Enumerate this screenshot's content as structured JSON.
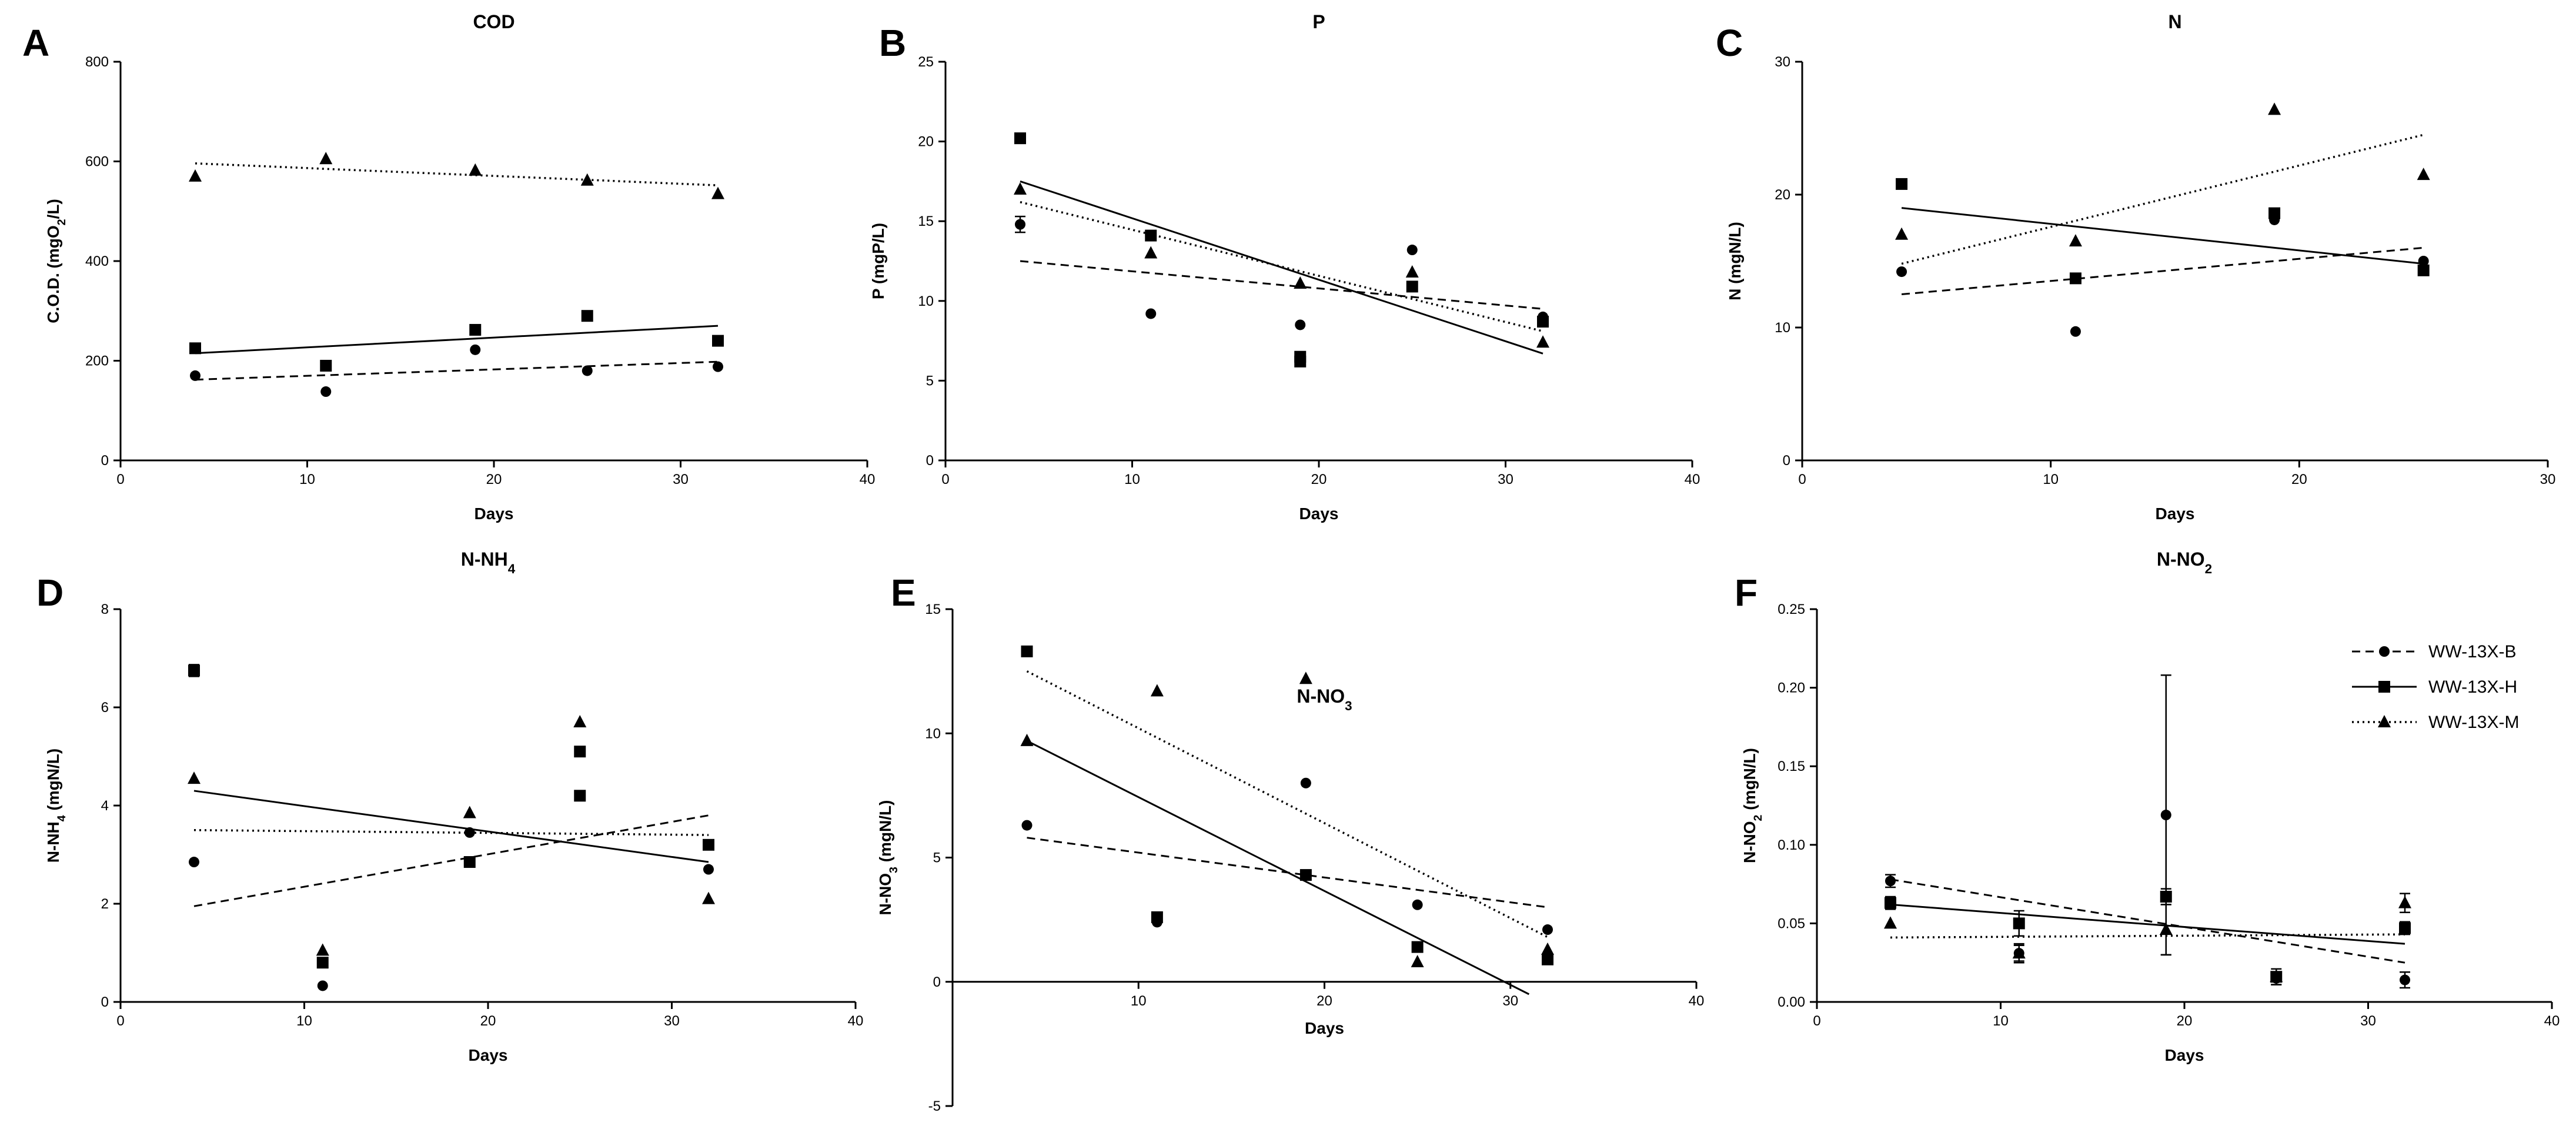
{
  "legend": {
    "entries": [
      {
        "label": "WW-13X-B",
        "marker": "circle",
        "line": "dashed"
      },
      {
        "label": "WW-13X-H",
        "marker": "square",
        "line": "solid"
      },
      {
        "label": "WW-13X-M",
        "marker": "triangle",
        "line": "dotted"
      }
    ]
  },
  "chart_data": [
    {
      "panel": "A",
      "type": "scatter",
      "title": "COD",
      "xlabel": "Days",
      "ylabel": "C.O.D. (mgO2/L)",
      "ylabel_parts": [
        {
          "t": "C.O.D. (mgO"
        },
        {
          "t": "2",
          "sub": true
        },
        {
          "t": "/L)"
        }
      ],
      "xlim": [
        0,
        40
      ],
      "ylim": [
        0,
        800
      ],
      "xticks": [
        0,
        10,
        20,
        30,
        40
      ],
      "yticks": [
        0,
        200,
        400,
        600,
        800
      ],
      "grid": false,
      "series": [
        {
          "name": "WW-13X-B",
          "marker": "circle",
          "line": "dashed",
          "x": [
            4,
            11,
            19,
            25,
            32
          ],
          "y": [
            170,
            138,
            222,
            180,
            188
          ],
          "err": [
            0,
            0,
            0,
            0,
            0
          ],
          "trend": [
            [
              4,
              162
            ],
            [
              32,
              198
            ]
          ]
        },
        {
          "name": "WW-13X-H",
          "marker": "square",
          "line": "solid",
          "x": [
            4,
            11,
            19,
            25,
            32
          ],
          "y": [
            225,
            190,
            262,
            290,
            240
          ],
          "err": [
            0,
            0,
            0,
            0,
            0
          ],
          "trend": [
            [
              4,
              215
            ],
            [
              32,
              270
            ]
          ]
        },
        {
          "name": "WW-13X-M",
          "marker": "triangle",
          "line": "dotted",
          "x": [
            4,
            11,
            19,
            25,
            32
          ],
          "y": [
            570,
            605,
            582,
            562,
            535
          ],
          "err": [
            0,
            0,
            0,
            0,
            0
          ],
          "trend": [
            [
              4,
              596
            ],
            [
              32,
              552
            ]
          ]
        }
      ]
    },
    {
      "panel": "B",
      "type": "scatter",
      "title": "P",
      "xlabel": "Days",
      "ylabel": "P (mgP/L)",
      "ylabel_parts": [
        {
          "t": "P (mgP/L)"
        }
      ],
      "xlim": [
        0,
        40
      ],
      "ylim": [
        0,
        25
      ],
      "xticks": [
        0,
        10,
        20,
        30,
        40
      ],
      "yticks": [
        0,
        5,
        10,
        15,
        20,
        25
      ],
      "grid": false,
      "series": [
        {
          "name": "WW-13X-B",
          "marker": "circle",
          "line": "dashed",
          "x": [
            4,
            11,
            19,
            25,
            32
          ],
          "y": [
            14.8,
            9.2,
            8.5,
            13.2,
            9.0
          ],
          "err": [
            0.5,
            0,
            0,
            0,
            0
          ],
          "trend": [
            [
              4,
              12.5
            ],
            [
              32,
              9.5
            ]
          ]
        },
        {
          "name": "WW-13X-H",
          "marker": "square",
          "line": "solid",
          "x": [
            4,
            11,
            19,
            19,
            25,
            32
          ],
          "y": [
            20.2,
            14.1,
            6.5,
            6.2,
            10.9,
            8.7
          ],
          "err": [
            0,
            0,
            0,
            0,
            0,
            0
          ],
          "trend": [
            [
              4,
              17.5
            ],
            [
              32,
              6.7
            ]
          ]
        },
        {
          "name": "WW-13X-M",
          "marker": "triangle",
          "line": "dotted",
          "x": [
            4,
            11,
            19,
            25,
            32
          ],
          "y": [
            17.0,
            13.0,
            11.1,
            11.8,
            7.4
          ],
          "err": [
            0,
            0,
            0,
            0,
            0
          ],
          "trend": [
            [
              4,
              16.2
            ],
            [
              32,
              8.1
            ]
          ]
        }
      ]
    },
    {
      "panel": "C",
      "type": "scatter",
      "title": "N",
      "xlabel": "Days",
      "ylabel": "N (mgN/L)",
      "ylabel_parts": [
        {
          "t": "N (mgN/L)"
        }
      ],
      "xlim": [
        0,
        30
      ],
      "ylim": [
        0,
        30
      ],
      "xticks": [
        0,
        10,
        20,
        30
      ],
      "yticks": [
        0,
        10,
        20,
        30
      ],
      "grid": false,
      "series": [
        {
          "name": "WW-13X-B",
          "marker": "circle",
          "line": "dashed",
          "x": [
            4,
            11,
            19,
            25
          ],
          "y": [
            14.2,
            9.7,
            18.1,
            15.0
          ],
          "err": [
            0,
            0,
            0,
            0
          ],
          "trend": [
            [
              4,
              12.5
            ],
            [
              25,
              16.0
            ]
          ]
        },
        {
          "name": "WW-13X-H",
          "marker": "square",
          "line": "solid",
          "x": [
            4,
            11,
            19,
            25
          ],
          "y": [
            20.8,
            13.7,
            18.6,
            14.3
          ],
          "err": [
            0,
            0,
            0,
            0
          ],
          "trend": [
            [
              4,
              19.0
            ],
            [
              25,
              14.8
            ]
          ]
        },
        {
          "name": "WW-13X-M",
          "marker": "triangle",
          "line": "dotted",
          "x": [
            4,
            11,
            19,
            25
          ],
          "y": [
            17.0,
            16.5,
            26.4,
            21.5
          ],
          "err": [
            0,
            0,
            0,
            0
          ],
          "trend": [
            [
              4,
              14.8
            ],
            [
              25,
              24.5
            ]
          ]
        }
      ]
    },
    {
      "panel": "D",
      "type": "scatter",
      "title": "N-NH4",
      "title_parts": [
        {
          "t": "N-NH"
        },
        {
          "t": "4",
          "sub": true
        }
      ],
      "xlabel": "Days",
      "ylabel": "N-NH4 (mgN/L)",
      "ylabel_parts": [
        {
          "t": "N-NH"
        },
        {
          "t": "4",
          "sub": true
        },
        {
          "t": " (mgN/L)"
        }
      ],
      "xlim": [
        0,
        40
      ],
      "ylim": [
        0,
        8
      ],
      "xticks": [
        0,
        10,
        20,
        30,
        40
      ],
      "yticks": [
        0,
        2,
        4,
        6,
        8
      ],
      "grid": false,
      "series": [
        {
          "name": "WW-13X-B",
          "marker": "circle",
          "line": "dashed",
          "x": [
            4,
            11,
            19,
            32
          ],
          "y": [
            2.85,
            0.33,
            3.45,
            2.7
          ],
          "err": [
            0,
            0,
            0,
            0
          ],
          "trend": [
            [
              4,
              1.95
            ],
            [
              32,
              3.8
            ]
          ]
        },
        {
          "name": "WW-13X-H",
          "marker": "square",
          "line": "solid",
          "x": [
            4,
            11,
            19,
            25,
            25,
            32
          ],
          "y": [
            6.75,
            0.8,
            2.85,
            5.1,
            4.2,
            3.2
          ],
          "err": [
            0.12,
            0,
            0,
            0,
            0,
            0
          ],
          "trend": [
            [
              4,
              4.3
            ],
            [
              32,
              2.85
            ]
          ]
        },
        {
          "name": "WW-13X-M",
          "marker": "triangle",
          "line": "dotted",
          "x": [
            4,
            11,
            19,
            25,
            32
          ],
          "y": [
            4.55,
            1.05,
            3.85,
            5.7,
            2.1
          ],
          "err": [
            0,
            0,
            0,
            0,
            0
          ],
          "trend": [
            [
              4,
              3.5
            ],
            [
              32,
              3.4
            ]
          ]
        }
      ]
    },
    {
      "panel": "E",
      "type": "scatter",
      "title": "N-NO3",
      "title_parts": [
        {
          "t": "N-NO"
        },
        {
          "t": "3",
          "sub": true
        }
      ],
      "xlabel": "Days",
      "ylabel": "N-NO3 (mgN/L)",
      "ylabel_parts": [
        {
          "t": "N-NO"
        },
        {
          "t": "3",
          "sub": true
        },
        {
          "t": " (mgN/L)"
        }
      ],
      "xlim": [
        0,
        40
      ],
      "ylim": [
        -5,
        15
      ],
      "xticks": [
        10,
        20,
        30,
        40
      ],
      "yticks": [
        -5,
        0,
        5,
        10,
        15
      ],
      "grid": false,
      "series": [
        {
          "name": "WW-13X-B",
          "marker": "circle",
          "line": "dashed",
          "x": [
            4,
            11,
            19,
            25,
            32
          ],
          "y": [
            6.3,
            2.4,
            8.0,
            3.1,
            2.1
          ],
          "err": [
            0,
            0,
            0,
            0,
            0
          ],
          "trend": [
            [
              4,
              5.8
            ],
            [
              32,
              3.0
            ]
          ]
        },
        {
          "name": "WW-13X-H",
          "marker": "square",
          "line": "solid",
          "x": [
            4,
            11,
            19,
            25,
            32
          ],
          "y": [
            13.3,
            2.6,
            4.3,
            1.4,
            0.9
          ],
          "err": [
            0,
            0,
            0,
            0,
            0
          ],
          "trend": [
            [
              4,
              9.7
            ],
            [
              31,
              -0.5
            ]
          ]
        },
        {
          "name": "WW-13X-M",
          "marker": "triangle",
          "line": "dotted",
          "x": [
            4,
            11,
            19,
            25,
            32
          ],
          "y": [
            9.7,
            11.7,
            12.2,
            0.8,
            1.3
          ],
          "err": [
            0,
            0,
            0,
            0,
            0
          ],
          "trend": [
            [
              4,
              12.5
            ],
            [
              32,
              1.8
            ]
          ]
        }
      ]
    },
    {
      "panel": "F",
      "type": "scatter",
      "title": "N-NO2",
      "title_parts": [
        {
          "t": "N-NO"
        },
        {
          "t": "2",
          "sub": true
        }
      ],
      "xlabel": "Days",
      "ylabel": "N-NO2 (mgN/L)",
      "ylabel_parts": [
        {
          "t": "N-NO"
        },
        {
          "t": "2",
          "sub": true
        },
        {
          "t": " (mgN/L)"
        }
      ],
      "xlim": [
        0,
        40
      ],
      "ylim": [
        0,
        0.25
      ],
      "xticks": [
        0,
        10,
        20,
        30,
        40
      ],
      "yticks": [
        0.0,
        0.05,
        0.1,
        0.15,
        0.2,
        0.25
      ],
      "ytick_decimals": 2,
      "grid": false,
      "series": [
        {
          "name": "WW-13X-B",
          "marker": "circle",
          "line": "dashed",
          "x": [
            4,
            11,
            19,
            25,
            32
          ],
          "y": [
            0.077,
            0.031,
            0.119,
            0.015,
            0.014
          ],
          "err": [
            0.004,
            0.006,
            0.089,
            0.004,
            0.005
          ],
          "trend": [
            [
              4,
              0.078
            ],
            [
              32,
              0.025
            ]
          ]
        },
        {
          "name": "WW-13X-H",
          "marker": "square",
          "line": "solid",
          "x": [
            4,
            11,
            19,
            25,
            32
          ],
          "y": [
            0.063,
            0.05,
            0.067,
            0.016,
            0.047
          ],
          "err": [
            0.004,
            0.008,
            0.005,
            0.005,
            0.004
          ],
          "trend": [
            [
              4,
              0.062
            ],
            [
              32,
              0.037
            ]
          ]
        },
        {
          "name": "WW-13X-M",
          "marker": "triangle",
          "line": "dotted",
          "x": [
            4,
            11,
            19,
            25,
            32
          ],
          "y": [
            0.05,
            0.031,
            0.046,
            0.016,
            0.063
          ],
          "err": [
            0,
            0.005,
            0.016,
            0,
            0.006
          ],
          "trend": [
            [
              4,
              0.041
            ],
            [
              32,
              0.043
            ]
          ]
        }
      ]
    }
  ]
}
